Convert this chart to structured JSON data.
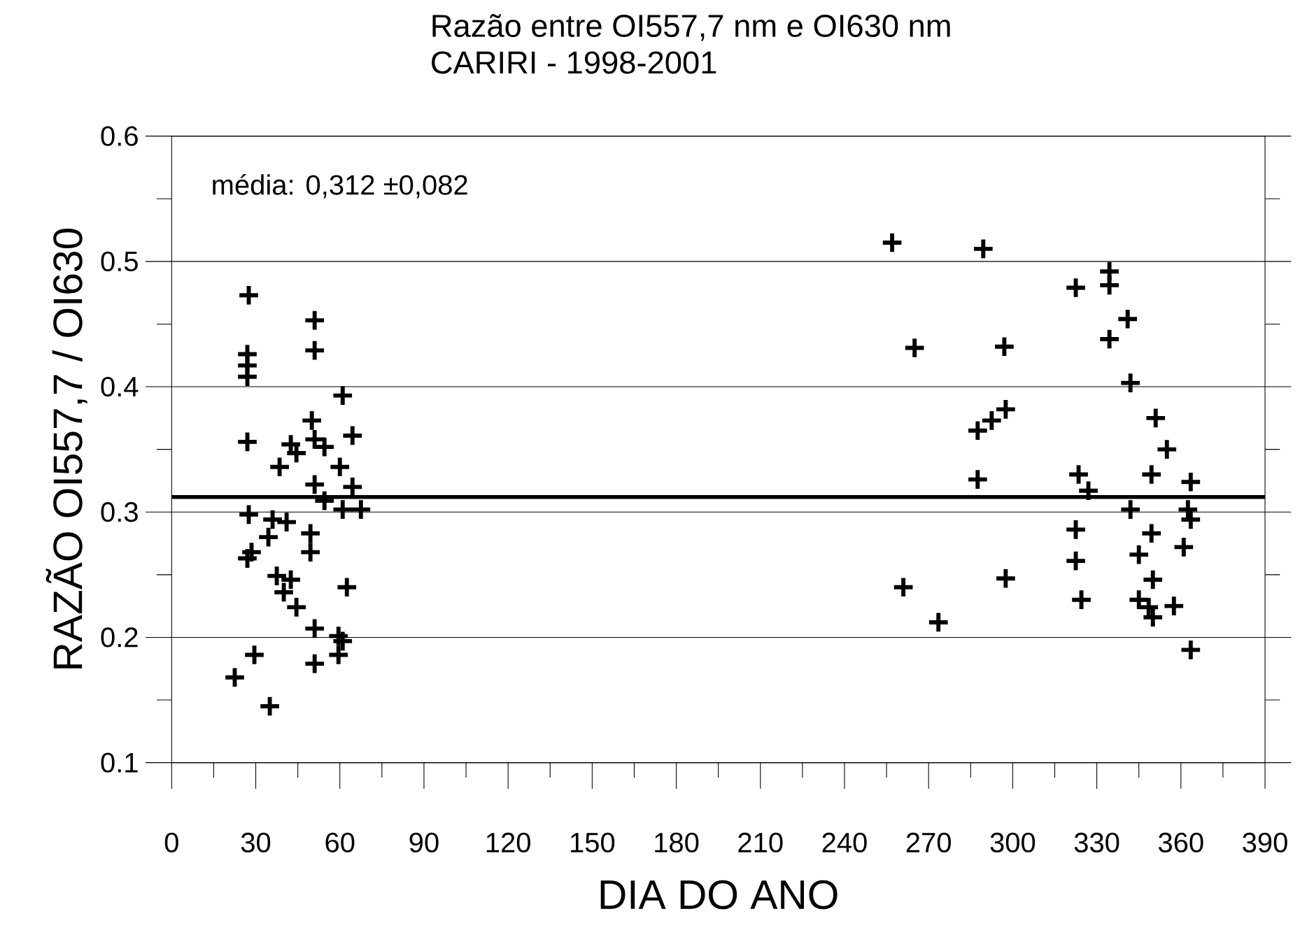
{
  "chart_data": {
    "type": "scatter",
    "title": "Razão entre OI557,7 nm e OI630 nm",
    "subtitle": "CARIRI - 1998-2001",
    "xlabel": "DIA DO ANO",
    "ylabel": "RAZÃO OI557,7 / OI630",
    "annotations": [
      "média: 0,312 ±0,082"
    ],
    "xlim": [
      0,
      390
    ],
    "ylim": [
      0.1,
      0.6
    ],
    "xticks": [
      0,
      30,
      60,
      90,
      120,
      150,
      180,
      210,
      240,
      270,
      300,
      330,
      360,
      390
    ],
    "yticks": [
      0.1,
      0.2,
      0.3,
      0.4,
      0.5,
      0.6
    ],
    "grid": "y",
    "marker": "cross",
    "ref_lines": [
      {
        "axis": "y",
        "value": 0.312,
        "color": "#000000"
      }
    ],
    "series": [
      {
        "color": "#000000",
        "x": [
          27.5,
          51,
          27,
          51,
          27,
          27,
          61,
          50,
          27,
          42.5,
          51,
          54.5,
          64.5,
          44.5,
          38.5,
          60,
          51,
          64.5,
          54.5,
          61,
          67.5,
          27.5,
          36,
          41,
          49.5,
          34.5,
          28.5,
          49.5,
          27,
          37.5,
          42.5,
          62.5,
          40,
          44.5,
          51,
          59.5,
          61,
          59.5,
          29.5,
          51,
          22.5,
          35,
          257,
          289.5,
          265,
          297,
          287.5,
          292.5,
          297.5,
          287.5,
          261,
          297.5,
          273.5,
          322.5,
          334.5,
          334.5,
          341,
          334.5,
          342,
          351,
          355,
          323.5,
          327,
          349.5,
          363.5,
          342,
          362.5,
          363.5,
          322.5,
          349.5,
          361,
          345,
          322.5,
          350,
          324.5,
          345,
          348.5,
          357.5,
          350,
          363.5
        ],
        "values": [
          0.473,
          0.453,
          0.426,
          0.429,
          0.417,
          0.408,
          0.393,
          0.373,
          0.356,
          0.354,
          0.358,
          0.352,
          0.361,
          0.347,
          0.336,
          0.336,
          0.322,
          0.32,
          0.309,
          0.302,
          0.302,
          0.298,
          0.294,
          0.292,
          0.283,
          0.28,
          0.268,
          0.268,
          0.263,
          0.249,
          0.246,
          0.24,
          0.236,
          0.224,
          0.207,
          0.201,
          0.197,
          0.186,
          0.186,
          0.179,
          0.168,
          0.145,
          0.515,
          0.51,
          0.431,
          0.432,
          0.365,
          0.373,
          0.382,
          0.326,
          0.24,
          0.247,
          0.212,
          0.479,
          0.492,
          0.481,
          0.454,
          0.438,
          0.403,
          0.375,
          0.35,
          0.33,
          0.317,
          0.33,
          0.324,
          0.302,
          0.302,
          0.294,
          0.286,
          0.283,
          0.272,
          0.266,
          0.261,
          0.246,
          0.23,
          0.23,
          0.224,
          0.225,
          0.216,
          0.19
        ]
      }
    ]
  }
}
